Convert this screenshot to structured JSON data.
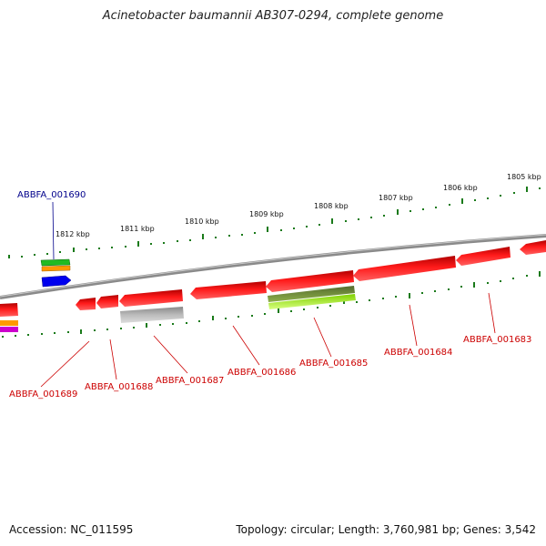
{
  "title": "Acinetobacter baumannii AB307-0294, complete genome",
  "accession": "Accession: NC_011595",
  "summary": "Topology: circular; Length: 3,760,981 bp; Genes: 3,542",
  "ticks": [
    {
      "label": "1812 kbp"
    },
    {
      "label": "1811 kbp"
    },
    {
      "label": "1810 kbp"
    },
    {
      "label": "1809 kbp"
    },
    {
      "label": "1808 kbp"
    },
    {
      "label": "1807 kbp"
    },
    {
      "label": "1806 kbp"
    },
    {
      "label": "1805 kbp"
    }
  ],
  "genes": [
    {
      "label": "ABBFA_001690",
      "color": "#00008b"
    },
    {
      "label": "ABBFA_001689",
      "color": "#cc0000"
    },
    {
      "label": "ABBFA_001688",
      "color": "#cc0000"
    },
    {
      "label": "ABBFA_001687",
      "color": "#cc0000"
    },
    {
      "label": "ABBFA_001686",
      "color": "#cc0000"
    },
    {
      "label": "ABBFA_001685",
      "color": "#cc0000"
    },
    {
      "label": "ABBFA_001684",
      "color": "#cc0000"
    },
    {
      "label": "ABBFA_001683",
      "color": "#cc0000"
    }
  ],
  "colors": {
    "backbone": "#8a8a8a",
    "cds": "#ee0000",
    "ticks": "#1a7a1a",
    "callout": "#cc0000",
    "blue_gene": "#0000ee",
    "gray_gene": "#a8a8a8",
    "olive_gene": "#6b8e23",
    "lime_gene": "#adff2f"
  }
}
